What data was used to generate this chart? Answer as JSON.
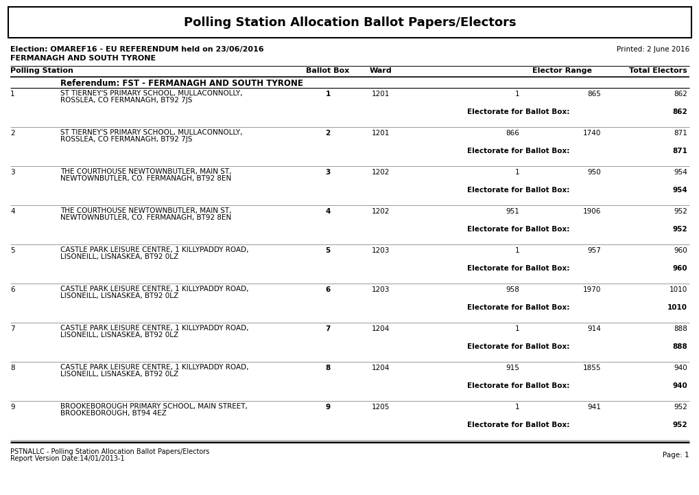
{
  "title": "Polling Station Allocation Ballot Papers/Electors",
  "election_info": "Election: OMAREF16 - EU REFERENDUM held on 23/06/2016",
  "printed_date": "Printed: 2 June 2016",
  "region": "FERMANAGH AND SOUTH TYRONE",
  "referendum_label": "Referendum: FST - FERMANAGH AND SOUTH TYRONE",
  "rows": [
    {
      "num": "1",
      "line1": "ST TIERNEY'S PRIMARY SCHOOL, MULLACONNOLLY,",
      "line2": "ROSSLEA, CO FERMANAGH, BT92 7JS",
      "ballot_box": "1",
      "ward": "1201",
      "elector_from": "1",
      "elector_to": "865",
      "total": "862",
      "electorate_total": "862"
    },
    {
      "num": "2",
      "line1": "ST TIERNEY'S PRIMARY SCHOOL, MULLACONNOLLY,",
      "line2": "ROSSLEA, CO FERMANAGH, BT92 7JS",
      "ballot_box": "2",
      "ward": "1201",
      "elector_from": "866",
      "elector_to": "1740",
      "total": "871",
      "electorate_total": "871"
    },
    {
      "num": "3",
      "line1": "THE COURTHOUSE NEWTOWNBUTLER, MAIN ST,",
      "line2": "NEWTOWNBUTLER, CO. FERMANAGH, BT92 8EN",
      "ballot_box": "3",
      "ward": "1202",
      "elector_from": "1",
      "elector_to": "950",
      "total": "954",
      "electorate_total": "954"
    },
    {
      "num": "4",
      "line1": "THE COURTHOUSE NEWTOWNBUTLER, MAIN ST,",
      "line2": "NEWTOWNBUTLER, CO. FERMANAGH, BT92 8EN",
      "ballot_box": "4",
      "ward": "1202",
      "elector_from": "951",
      "elector_to": "1906",
      "total": "952",
      "electorate_total": "952"
    },
    {
      "num": "5",
      "line1": "CASTLE PARK LEISURE CENTRE, 1 KILLYPADDY ROAD,",
      "line2": "LISONEILL, LISNASKEA, BT92 0LZ",
      "ballot_box": "5",
      "ward": "1203",
      "elector_from": "1",
      "elector_to": "957",
      "total": "960",
      "electorate_total": "960"
    },
    {
      "num": "6",
      "line1": "CASTLE PARK LEISURE CENTRE, 1 KILLYPADDY ROAD,",
      "line2": "LISONEILL, LISNASKEA, BT92 0LZ",
      "ballot_box": "6",
      "ward": "1203",
      "elector_from": "958",
      "elector_to": "1970",
      "total": "1010",
      "electorate_total": "1010"
    },
    {
      "num": "7",
      "line1": "CASTLE PARK LEISURE CENTRE, 1 KILLYPADDY ROAD,",
      "line2": "LISONEILL, LISNASKEA, BT92 0LZ",
      "ballot_box": "7",
      "ward": "1204",
      "elector_from": "1",
      "elector_to": "914",
      "total": "888",
      "electorate_total": "888"
    },
    {
      "num": "8",
      "line1": "CASTLE PARK LEISURE CENTRE, 1 KILLYPADDY ROAD,",
      "line2": "LISONEILL, LISNASKEA, BT92 0LZ",
      "ballot_box": "8",
      "ward": "1204",
      "elector_from": "915",
      "elector_to": "1855",
      "total": "940",
      "electorate_total": "940"
    },
    {
      "num": "9",
      "line1": "BROOKEBOROUGH PRIMARY SCHOOL, MAIN STREET,",
      "line2": "BROOKEBOROUGH, BT94 4EZ",
      "ballot_box": "9",
      "ward": "1205",
      "elector_from": "1",
      "elector_to": "941",
      "total": "952",
      "electorate_total": "952"
    }
  ],
  "footer_line1": "PSTNALLC - Polling Station Allocation Ballot Papers/Electors",
  "footer_line2": "Report Version Date:14/01/2013-1",
  "footer_right": "Page: 1",
  "bg_color": "#ffffff",
  "text_color": "#000000",
  "sep_color": "#999999"
}
